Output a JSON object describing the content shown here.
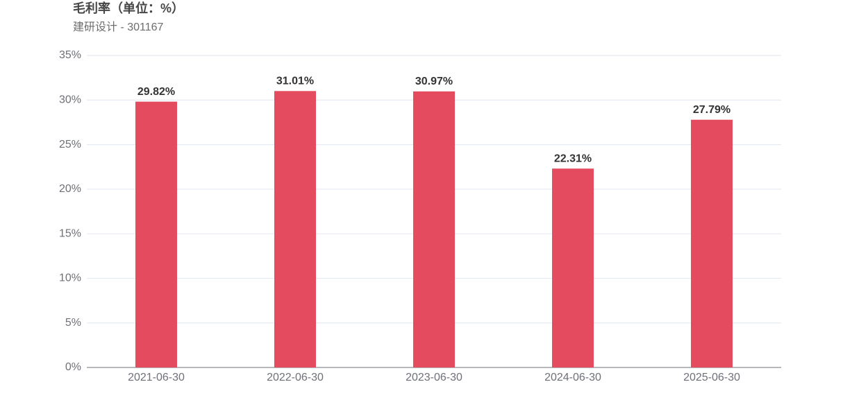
{
  "chart_data": {
    "type": "bar",
    "title": "毛利率（单位：%）",
    "subtitle": "建研设计 - 301167",
    "categories": [
      "2021-06-30",
      "2022-06-30",
      "2023-06-30",
      "2024-06-30",
      "2025-06-30"
    ],
    "values": [
      29.82,
      31.01,
      30.97,
      22.31,
      27.79
    ],
    "value_labels": [
      "29.82%",
      "31.01%",
      "30.97%",
      "22.31%",
      "27.79%"
    ],
    "color": "#e54b5e",
    "ylim": [
      0,
      35
    ],
    "yticks": [
      {
        "value": 0,
        "label": "0%"
      },
      {
        "value": 5,
        "label": "5%"
      },
      {
        "value": 10,
        "label": "10%"
      },
      {
        "value": 15,
        "label": "15%"
      },
      {
        "value": 20,
        "label": "20%"
      },
      {
        "value": 25,
        "label": "25%"
      },
      {
        "value": 30,
        "label": "30%"
      },
      {
        "value": 35,
        "label": "35%"
      }
    ],
    "grid": true
  }
}
